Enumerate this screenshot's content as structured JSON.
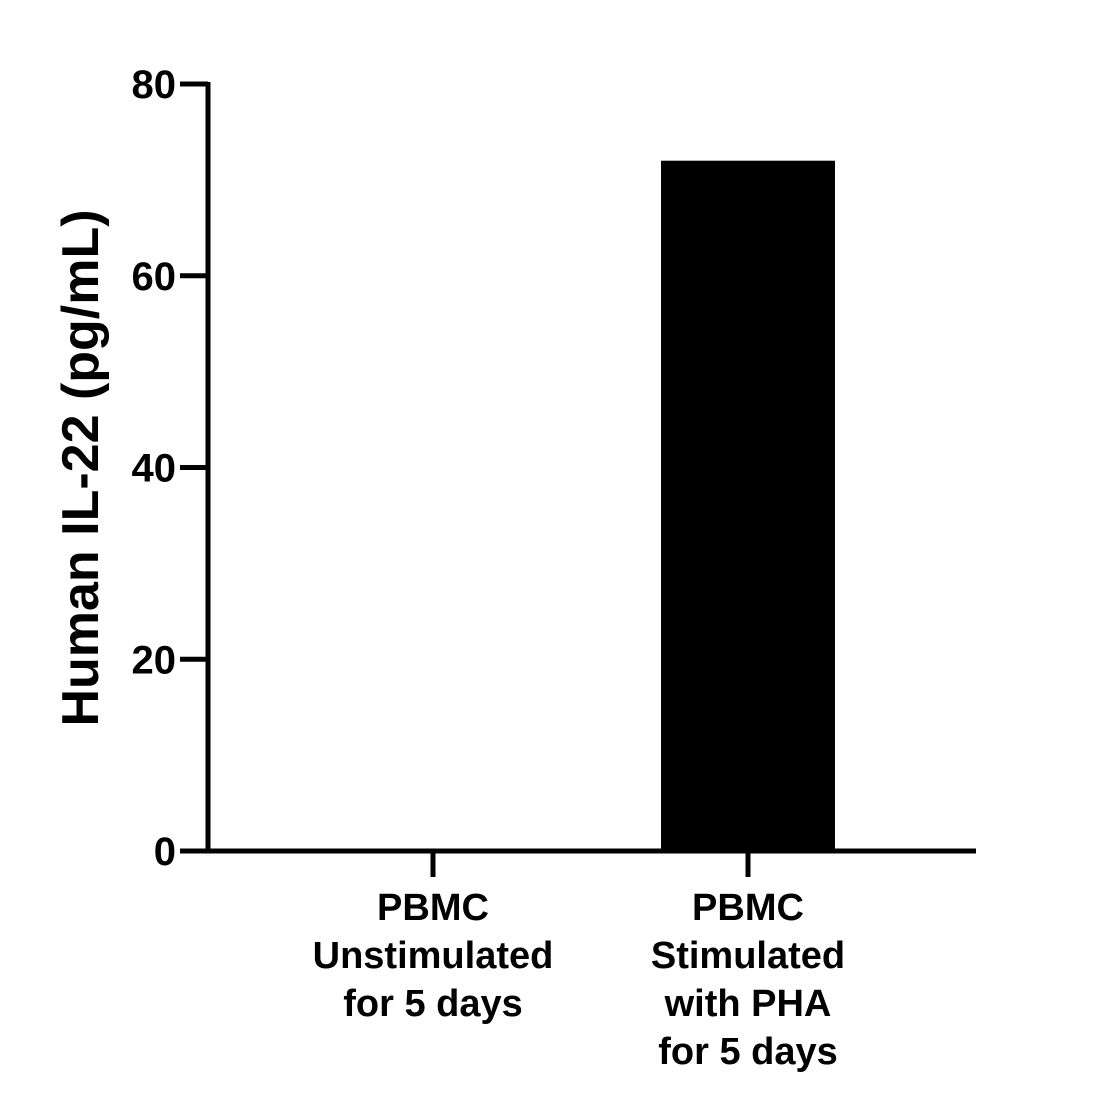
{
  "chart_data": {
    "type": "bar",
    "title": "",
    "xlabel": "",
    "ylabel": "Human IL-22 (pg/mL)",
    "ylim": [
      0,
      80
    ],
    "yticks": [
      "0",
      "20",
      "40",
      "60",
      "80"
    ],
    "categories": [
      [
        "PBMC",
        "Unstimulated",
        "for 5 days"
      ],
      [
        "PBMC",
        "Stimulated",
        "with PHA",
        "for 5 days"
      ]
    ],
    "values": [
      0,
      72
    ],
    "bar_color": "#000000",
    "grid": false,
    "legend": "none"
  }
}
